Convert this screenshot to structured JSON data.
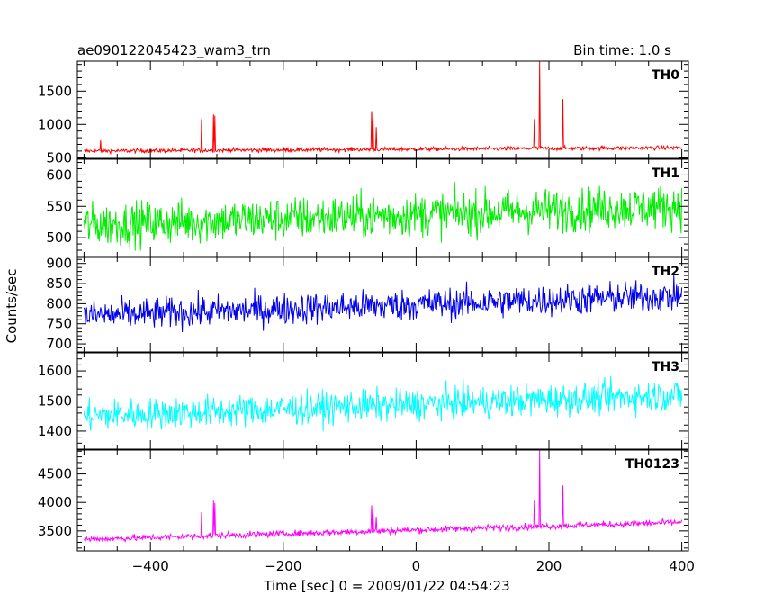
{
  "header": {
    "title": "ae090122045423_wam3_trn",
    "bin_time": "Bin time: 1.0 s"
  },
  "axes": {
    "xlabel": "Time [sec] 0 = 2009/01/22 04:54:23",
    "ylabel": "Counts/sec"
  },
  "chart_data": {
    "type": "line",
    "x_range": [
      -510,
      410
    ],
    "x_step": 1,
    "x_ticks": [
      -400,
      -200,
      0,
      200,
      400
    ],
    "x_tick_labels": [
      "−400",
      "−200",
      "0",
      "200",
      "400"
    ],
    "panels": [
      {
        "name": "TH0",
        "color": "#ff0000",
        "ylim": [
          490,
          1950
        ],
        "y_ticks": [
          500,
          1000,
          1500
        ],
        "y_tick_labels": [
          "500",
          "1000",
          "1500"
        ],
        "x_start": -500,
        "x_end": 400,
        "baseline_start": 600,
        "baseline_end": 650,
        "noise": 22,
        "spikes": [
          {
            "x": -323,
            "y": 1080
          },
          {
            "x": -305,
            "y": 1150
          },
          {
            "x": -303,
            "y": 1130
          },
          {
            "x": -475,
            "y": 760
          },
          {
            "x": -67,
            "y": 1200
          },
          {
            "x": -65,
            "y": 1170
          },
          {
            "x": -60,
            "y": 960
          },
          {
            "x": 178,
            "y": 1080
          },
          {
            "x": 186,
            "y": 1950
          },
          {
            "x": 221,
            "y": 1380
          }
        ]
      },
      {
        "name": "TH1",
        "color": "#00ee00",
        "ylim": [
          470,
          625
        ],
        "y_ticks": [
          500,
          550,
          600
        ],
        "y_tick_labels": [
          "500",
          "550",
          "600"
        ],
        "x_start": -500,
        "x_end": 400,
        "baseline_start": 520,
        "baseline_end": 550,
        "noise": 25,
        "spikes": []
      },
      {
        "name": "TH2",
        "color": "#0000ee",
        "ylim": [
          680,
          915
        ],
        "y_ticks": [
          700,
          750,
          800,
          850,
          900
        ],
        "y_tick_labels": [
          "700",
          "750",
          "800",
          "850",
          "900"
        ],
        "x_start": -500,
        "x_end": 400,
        "baseline_start": 770,
        "baseline_end": 820,
        "noise": 28,
        "spikes": []
      },
      {
        "name": "TH3",
        "color": "#00ffff",
        "ylim": [
          1340,
          1660
        ],
        "y_ticks": [
          1400,
          1500,
          1600
        ],
        "y_tick_labels": [
          "1400",
          "1500",
          "1600"
        ],
        "x_start": -500,
        "x_end": 400,
        "baseline_start": 1450,
        "baseline_end": 1520,
        "noise": 38,
        "spikes": []
      },
      {
        "name": "TH0123",
        "color": "#ff00ff",
        "ylim": [
          3150,
          4920
        ],
        "y_ticks": [
          3500,
          4000,
          4500
        ],
        "y_tick_labels": [
          "3500",
          "4000",
          "4500"
        ],
        "x_start": -500,
        "x_end": 400,
        "baseline_start": 3350,
        "baseline_end": 3650,
        "noise": 40,
        "spikes": [
          {
            "x": -323,
            "y": 3830
          },
          {
            "x": -305,
            "y": 4030
          },
          {
            "x": -303,
            "y": 3990
          },
          {
            "x": -67,
            "y": 3950
          },
          {
            "x": -65,
            "y": 3900
          },
          {
            "x": -60,
            "y": 3750
          },
          {
            "x": 178,
            "y": 4030
          },
          {
            "x": 186,
            "y": 4920
          },
          {
            "x": 221,
            "y": 4300
          }
        ]
      }
    ]
  }
}
